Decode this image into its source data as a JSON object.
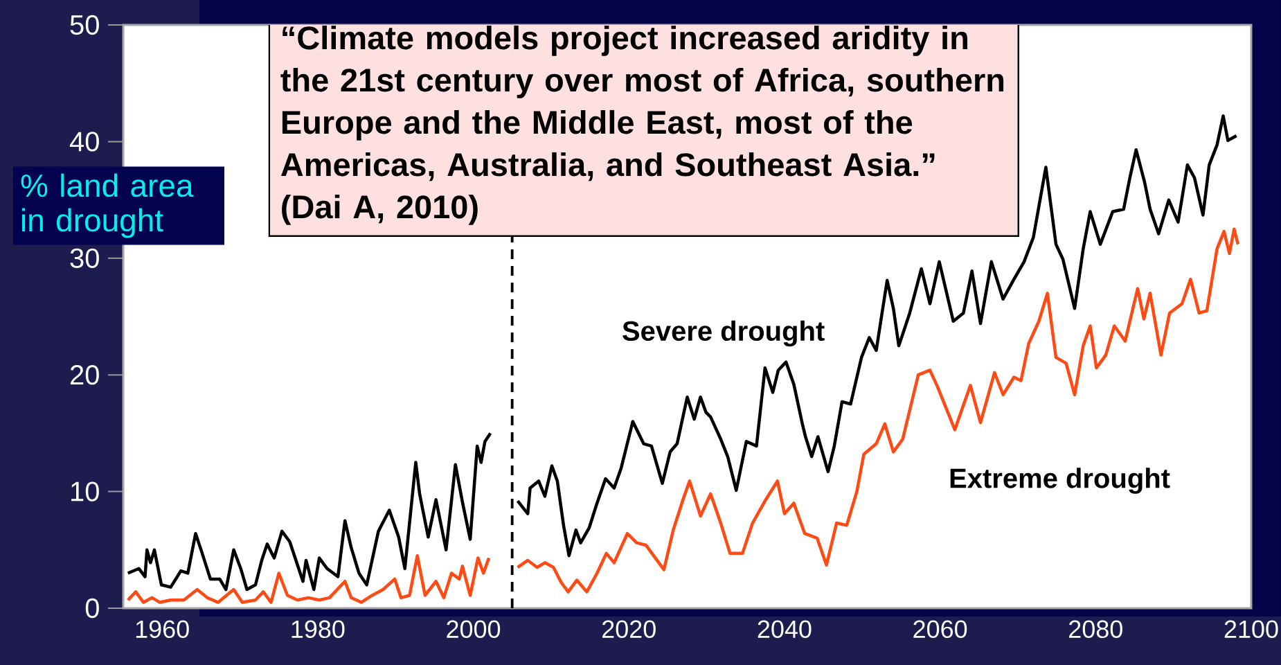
{
  "chart_data": {
    "type": "line",
    "ylabel": "% land area in drought",
    "annotations": [
      "“Climate models project increased aridity in the 21st century over most of Africa, southern Europe and the Middle East, most of the Americas, Australia, and Southeast Asia.” (Dai A, 2010)"
    ],
    "xlim": [
      1955,
      2100
    ],
    "ylim": [
      0,
      50
    ],
    "xticks": [
      1960,
      1980,
      2000,
      2020,
      2040,
      2060,
      2080,
      2100
    ],
    "yticks": [
      0,
      10,
      20,
      30,
      40,
      50
    ],
    "ref_lines": [
      {
        "axis": "x",
        "value": 2005,
        "color": "#000000",
        "line_style": "dashed"
      }
    ],
    "series": [
      {
        "color": "#000000",
        "x": [
          1955.6,
          1957.0,
          1957.8,
          1958.05,
          1958.5,
          1959.0,
          1959.9,
          1961.1,
          1962.4,
          1963.3,
          1964.3,
          1965.1,
          1966.2,
          1967.4,
          1968.2,
          1969.2,
          1970.1,
          1970.9,
          1972.0,
          1972.8,
          1973.5,
          1974.4,
          1975.4,
          1976.4,
          1978.1,
          1978.5,
          1979.5,
          1980.2,
          1981.2,
          1982.6,
          1983.5,
          1984.3,
          1985.3,
          1986.3,
          1987.8,
          1989.2,
          1990.4,
          1991.2,
          1992.6,
          1993.1,
          1994.2,
          1995.2,
          1996.5,
          1997.7,
          1998.6,
          1999.6,
          2000.5,
          2001.0,
          2001.5,
          2002.2
        ],
        "values": [
          3.0,
          3.4,
          2.7,
          5.0,
          3.9,
          5.0,
          2.0,
          1.8,
          3.2,
          3.0,
          6.4,
          4.8,
          2.5,
          2.5,
          1.6,
          5.0,
          3.4,
          1.6,
          2.0,
          4.1,
          5.5,
          4.3,
          6.6,
          5.7,
          2.3,
          4.1,
          1.6,
          4.3,
          3.4,
          2.7,
          7.5,
          5.2,
          3.0,
          2.0,
          6.6,
          8.4,
          6.1,
          3.4,
          12.5,
          9.8,
          6.1,
          9.3,
          5.0,
          12.3,
          9.1,
          5.9,
          13.9,
          12.5,
          14.3,
          15.0
        ]
      },
      {
        "color": "#ff4a14",
        "x": [
          1955.6,
          1956.6,
          1957.6,
          1958.7,
          1959.7,
          1961.1,
          1962.8,
          1964.5,
          1965.8,
          1967.2,
          1969.2,
          1970.3,
          1972.0,
          1973.0,
          1974.0,
          1975.0,
          1976.1,
          1977.4,
          1978.8,
          1980.2,
          1981.5,
          1983.5,
          1984.3,
          1985.6,
          1987.0,
          1988.4,
          1989.9,
          1990.7,
          1991.8,
          1992.8,
          1993.8,
          1995.2,
          1996.2,
          1997.2,
          1998.2,
          1998.6,
          1999.6,
          2000.6,
          2001.3,
          2002.0
        ],
        "values": [
          0.7,
          1.4,
          0.5,
          0.9,
          0.5,
          0.7,
          0.7,
          1.6,
          0.9,
          0.5,
          1.6,
          0.5,
          0.7,
          1.4,
          0.5,
          3.0,
          1.1,
          0.7,
          0.9,
          0.7,
          0.9,
          2.3,
          0.9,
          0.5,
          1.1,
          1.6,
          2.5,
          0.9,
          1.1,
          4.5,
          1.1,
          2.3,
          0.9,
          3.0,
          2.5,
          3.6,
          1.1,
          4.3,
          3.0,
          4.3
        ]
      },
      {
        "name": "Severe drought",
        "color": "#000000",
        "x": [
          2005.7,
          2007.0,
          2007.3,
          2008.4,
          2009.2,
          2010.1,
          2010.8,
          2011.6,
          2012.3,
          2013.2,
          2013.8,
          2014.9,
          2015.9,
          2017.0,
          2018.1,
          2019.0,
          2020.5,
          2021.9,
          2022.9,
          2024.3,
          2025.3,
          2026.2,
          2027.5,
          2028.4,
          2029.2,
          2029.9,
          2030.5,
          2031.8,
          2032.7,
          2033.8,
          2035.1,
          2036.4,
          2037.5,
          2038.5,
          2039.2,
          2040.2,
          2041.2,
          2042.3,
          2042.7,
          2043.5,
          2044.3,
          2045.6,
          2046.4,
          2047.4,
          2048.5,
          2049.9,
          2050.9,
          2051.8,
          2052.4,
          2053.2,
          2054.0,
          2054.7,
          2056.1,
          2057.6,
          2058.7,
          2059.9,
          2061.7,
          2063.0,
          2064.1,
          2065.2,
          2066.6,
          2068.1,
          2069.5,
          2070.8,
          2072.0,
          2073.6,
          2074.9,
          2075.8,
          2077.3,
          2078.4,
          2079.3,
          2080.6,
          2082.2,
          2083.6,
          2084.4,
          2085.2,
          2086.3,
          2087.0,
          2088.1,
          2089.4,
          2090.6,
          2091.8,
          2092.7,
          2093.8,
          2094.6,
          2095.6,
          2096.4,
          2097.0,
          2098.1
        ],
        "values": [
          9.2,
          8.1,
          10.3,
          10.9,
          9.6,
          12.2,
          10.9,
          7.1,
          4.5,
          6.7,
          5.6,
          6.9,
          9.0,
          11.1,
          10.3,
          12.0,
          16.0,
          14.1,
          13.9,
          10.7,
          13.4,
          14.1,
          18.1,
          16.2,
          18.1,
          16.8,
          16.4,
          14.5,
          13.0,
          10.1,
          14.3,
          13.9,
          20.6,
          18.5,
          20.4,
          21.1,
          19.2,
          15.8,
          14.7,
          13.0,
          14.7,
          11.7,
          13.9,
          17.7,
          17.5,
          21.5,
          23.2,
          22.1,
          24.7,
          28.1,
          25.7,
          22.5,
          25.3,
          29.1,
          26.1,
          29.7,
          24.6,
          25.3,
          28.9,
          24.4,
          29.7,
          26.5,
          28.2,
          29.7,
          31.8,
          37.8,
          31.2,
          29.9,
          25.7,
          30.8,
          34.0,
          31.2,
          34.0,
          34.2,
          36.9,
          39.3,
          36.5,
          34.2,
          32.1,
          35.0,
          33.1,
          38.0,
          36.9,
          33.7,
          38.0,
          39.7,
          42.2,
          40.1,
          40.5
        ]
      },
      {
        "name": "Extreme drought",
        "color": "#ff4a14",
        "x": [
          2005.7,
          2007.0,
          2008.2,
          2009.2,
          2010.3,
          2011.3,
          2012.2,
          2013.3,
          2014.6,
          2015.9,
          2017.1,
          2018.1,
          2019.8,
          2021.0,
          2022.2,
          2024.5,
          2025.7,
          2027.0,
          2027.8,
          2029.2,
          2030.5,
          2031.8,
          2033.0,
          2034.6,
          2035.9,
          2037.5,
          2039.1,
          2040.0,
          2041.2,
          2042.6,
          2044.2,
          2045.4,
          2046.7,
          2048.0,
          2049.3,
          2050.2,
          2051.8,
          2052.9,
          2054.0,
          2055.2,
          2057.2,
          2058.7,
          2059.6,
          2061.9,
          2063.9,
          2065.2,
          2067.0,
          2068.1,
          2069.5,
          2070.4,
          2071.4,
          2072.7,
          2073.8,
          2074.9,
          2076.2,
          2077.3,
          2078.4,
          2079.3,
          2080.1,
          2081.3,
          2082.4,
          2083.8,
          2085.4,
          2086.2,
          2087.0,
          2088.4,
          2089.5,
          2091.1,
          2092.2,
          2093.3,
          2094.3,
          2095.6,
          2096.5,
          2097.2,
          2097.8,
          2098.3
        ],
        "values": [
          3.5,
          4.1,
          3.5,
          3.9,
          3.5,
          2.2,
          1.4,
          2.4,
          1.4,
          3.0,
          4.7,
          3.9,
          6.4,
          5.6,
          5.4,
          3.3,
          6.7,
          9.4,
          10.9,
          7.9,
          9.8,
          7.3,
          4.7,
          4.7,
          7.3,
          9.2,
          10.9,
          8.1,
          9.0,
          6.4,
          6.0,
          3.7,
          7.3,
          7.1,
          10.0,
          13.2,
          14.1,
          15.8,
          13.4,
          14.5,
          20.0,
          20.4,
          19.1,
          15.3,
          19.1,
          15.9,
          20.2,
          18.3,
          19.8,
          19.5,
          22.7,
          24.6,
          27.0,
          21.5,
          21.0,
          18.3,
          22.5,
          24.2,
          20.6,
          21.7,
          24.2,
          22.9,
          27.4,
          24.8,
          27.0,
          21.7,
          25.3,
          26.1,
          28.2,
          25.3,
          25.5,
          30.8,
          32.3,
          30.4,
          32.5,
          31.2
        ]
      }
    ]
  }
}
